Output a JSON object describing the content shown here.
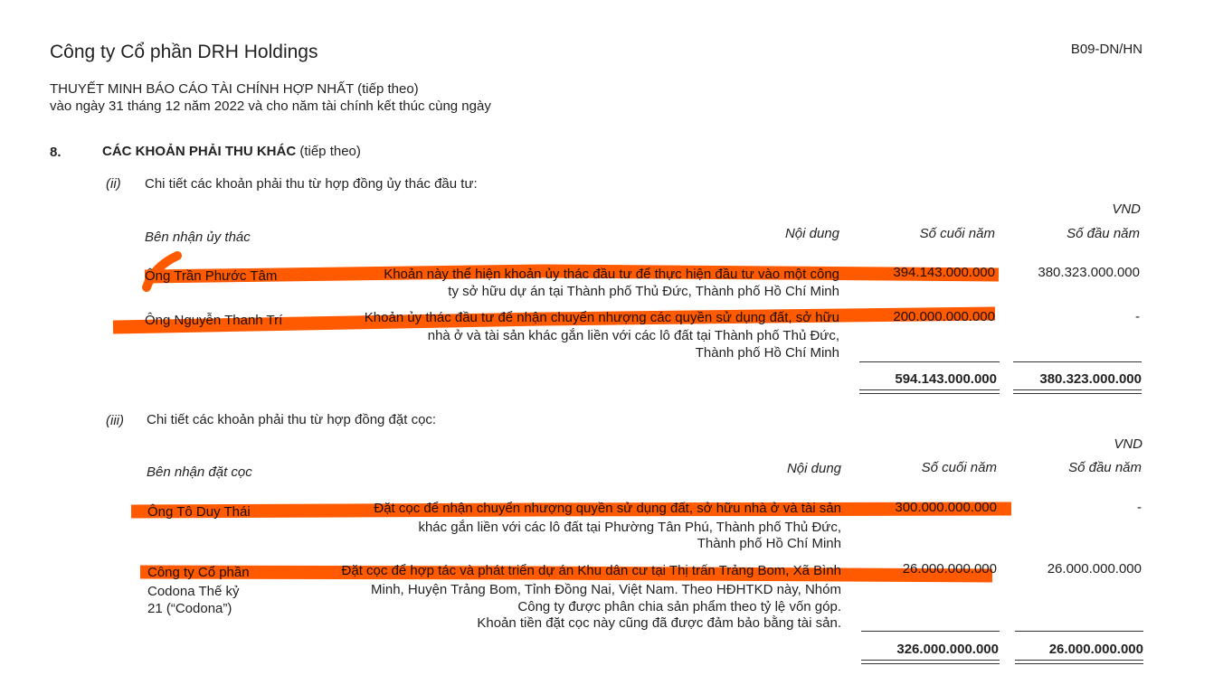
{
  "header": {
    "company": "Công ty Cổ phần DRH Holdings",
    "form_code": "B09-DN/HN",
    "subtitle_main": "THUYẾT MINH BÁO CÁO TÀI CHÍNH HỢP NHẤT",
    "subtitle_suffix": "(tiếp theo)",
    "period": "vào ngày 31 tháng 12 năm 2022 và cho năm tài chính kết thúc cùng ngày"
  },
  "section": {
    "number": "8.",
    "title": "CÁC KHOẢN PHẢI THU KHÁC",
    "title_suffix": "(tiếp theo)"
  },
  "highlight_color": "#ff5a00",
  "trust": {
    "label": "(ii)",
    "title": "Chi tiết các khoản phải thu từ hợp đồng ủy thác đầu tư:",
    "currency": "VND",
    "columns": [
      "Bên nhận ủy thác",
      "Nội dung",
      "Số cuối năm",
      "Số đầu năm"
    ],
    "rows": [
      {
        "name": [
          "Ông Trần Phước Tâm"
        ],
        "content": [
          "Khoản này thể hiện khoản ủy thác đầu tư để thực hiện đầu tư vào một công",
          "ty sở hữu dự án tại Thành phố Thủ Đức, Thành phố Hồ Chí Minh"
        ],
        "end": "394.143.000.000",
        "begin": "380.323.000.000",
        "highlighted": true
      },
      {
        "name": [
          "Ông Nguyễn Thanh Trí"
        ],
        "content": [
          "Khoản ủy thác đầu tư để nhận chuyển nhượng các quyền sử dụng đất, sở hữu",
          "nhà ở và tài sản khác gắn liền với các lô đất tại Thành phố Thủ Đức,",
          "Thành phố Hồ Chí Minh"
        ],
        "end": "200.000.000.000",
        "begin": "-",
        "highlighted": true
      }
    ],
    "total_end": "594.143.000.000",
    "total_begin": "380.323.000.000"
  },
  "deposit": {
    "label": "(iii)",
    "title": "Chi tiết các khoản phải thu từ hợp đồng đặt cọc:",
    "currency": "VND",
    "columns": [
      "Bên nhận đặt cọc",
      "Nội dung",
      "Số cuối năm",
      "Số đầu năm"
    ],
    "rows": [
      {
        "name": [
          "Ông Tô Duy Thái"
        ],
        "content": [
          "Đặt cọc để nhận chuyển nhượng quyền sử dụng đất, sở hữu nhà ở và tài sản",
          "khác gắn liền với các lô đất tại Phường Tân Phú, Thành phố Thủ Đức,",
          "Thành phố Hồ Chí Minh"
        ],
        "end": "300.000.000.000",
        "begin": "-",
        "highlighted": true
      },
      {
        "name": [
          "Công ty Cổ phần",
          "Codona Thế kỷ",
          "21 (“Codona”)"
        ],
        "content": [
          "Đặt cọc để hợp tác và phát triển dự án Khu dân cư tại Thị trấn Trảng Bom, Xã Bình",
          "Minh, Huyện Trảng Bom, Tỉnh Đồng Nai, Việt Nam. Theo HĐHTKD này, Nhóm",
          "Công ty được phân chia sản phẩm theo tỷ lệ vốn góp.",
          "Khoản tiền đặt cọc này cũng đã được đảm bảo bằng tài sản."
        ],
        "end": "26.000.000.000",
        "begin": "26.000.000.000",
        "highlighted": true
      }
    ],
    "total_end": "326.000.000.000",
    "total_begin": "26.000.000.000"
  }
}
